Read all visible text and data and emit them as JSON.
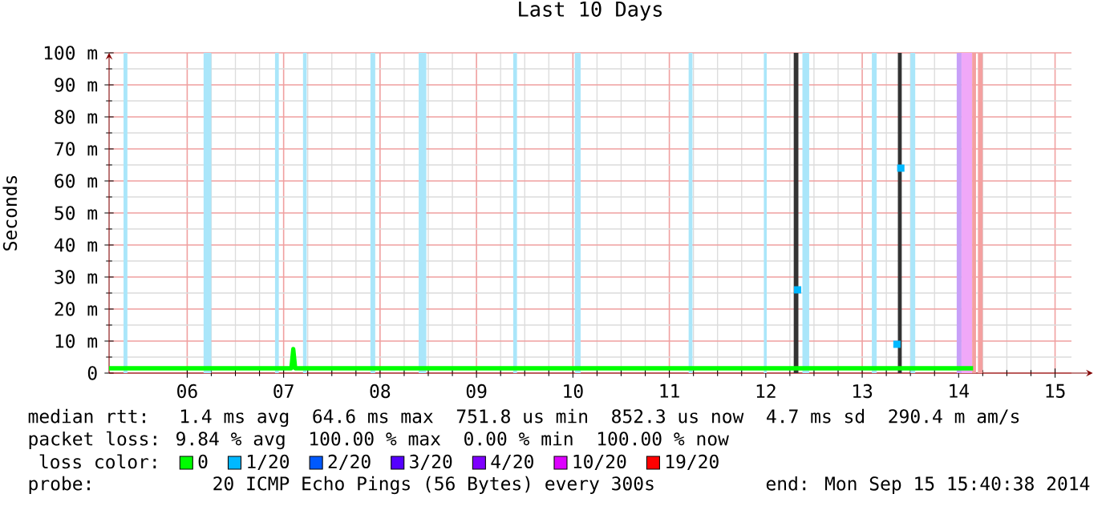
{
  "chart_data": {
    "type": "line",
    "title": "Last 10 Days",
    "ylabel": "Seconds",
    "xlim": [
      5.19,
      15.17
    ],
    "ylim": [
      0,
      100
    ],
    "xticks": [
      {
        "value": 6,
        "label": "06"
      },
      {
        "value": 7,
        "label": "07"
      },
      {
        "value": 8,
        "label": "08"
      },
      {
        "value": 9,
        "label": "09"
      },
      {
        "value": 10,
        "label": "10"
      },
      {
        "value": 11,
        "label": "11"
      },
      {
        "value": 12,
        "label": "12"
      },
      {
        "value": 13,
        "label": "13"
      },
      {
        "value": 14,
        "label": "14"
      },
      {
        "value": 15,
        "label": "15"
      }
    ],
    "yticks": [
      0,
      {
        "value": 10,
        "label": "10 m"
      },
      {
        "value": 20,
        "label": "20 m"
      },
      {
        "value": 30,
        "label": "30 m"
      },
      {
        "value": 40,
        "label": "40 m"
      },
      {
        "value": 50,
        "label": "50 m"
      },
      {
        "value": 60,
        "label": "60 m"
      },
      {
        "value": 70,
        "label": "70 m"
      },
      {
        "value": 80,
        "label": "80 m"
      },
      {
        "value": 90,
        "label": "90 m"
      },
      {
        "value": 100,
        "label": "100 m"
      }
    ],
    "grid": true,
    "legend": "bottom left",
    "legend_title": "loss color:",
    "series": [
      {
        "name": "0",
        "color": "#00ff00",
        "x": [
          5.19,
          6.0,
          7.0,
          7.08,
          7.1,
          7.12,
          8.0,
          9.0,
          10.0,
          11.0,
          12.0,
          12.3,
          13.3,
          14.0,
          14.15
        ],
        "values": [
          1.5,
          1.5,
          1.5,
          1.5,
          7.5,
          1.5,
          1.5,
          1.5,
          1.5,
          1.5,
          1.5,
          1.5,
          1.5,
          1.5,
          1.5
        ]
      },
      {
        "name": "1/20",
        "color": "#00b8ff",
        "type": "scatter",
        "marker": "square",
        "x": [
          12.33,
          13.36,
          13.4
        ],
        "values": [
          26,
          9,
          64
        ]
      },
      {
        "name": "2/20",
        "color": "#0059ff"
      },
      {
        "name": "3/20",
        "color": "#5500ff"
      },
      {
        "name": "4/20",
        "color": "#7e00ff"
      },
      {
        "name": "10/20",
        "color": "#dd00ff"
      },
      {
        "name": "19/20",
        "color": "#ff0000"
      }
    ],
    "bands": [
      {
        "axis": "x",
        "from": 5.34,
        "to": 5.38,
        "color": "#aae6fa"
      },
      {
        "axis": "x",
        "from": 6.17,
        "to": 6.25,
        "color": "#aae6fa"
      },
      {
        "axis": "x",
        "from": 6.91,
        "to": 6.95,
        "color": "#aae6fa"
      },
      {
        "axis": "x",
        "from": 7.2,
        "to": 7.24,
        "color": "#aae6fa"
      },
      {
        "axis": "x",
        "from": 7.9,
        "to": 7.95,
        "color": "#aae6fa"
      },
      {
        "axis": "x",
        "from": 8.4,
        "to": 8.48,
        "color": "#aae6fa"
      },
      {
        "axis": "x",
        "from": 9.38,
        "to": 9.42,
        "color": "#aae6fa"
      },
      {
        "axis": "x",
        "from": 10.02,
        "to": 10.08,
        "color": "#aae6fa"
      },
      {
        "axis": "x",
        "from": 11.2,
        "to": 11.24,
        "color": "#aae6fa"
      },
      {
        "axis": "x",
        "from": 11.98,
        "to": 12.01,
        "color": "#aae6fa"
      },
      {
        "axis": "x",
        "from": 12.29,
        "to": 12.34,
        "color": "#333333"
      },
      {
        "axis": "x",
        "from": 12.38,
        "to": 12.45,
        "color": "#aae6fa"
      },
      {
        "axis": "x",
        "from": 13.1,
        "to": 13.15,
        "color": "#aae6fa"
      },
      {
        "axis": "x",
        "from": 13.37,
        "to": 13.41,
        "color": "#333333"
      },
      {
        "axis": "x",
        "from": 13.5,
        "to": 13.55,
        "color": "#aae6fa"
      },
      {
        "axis": "x",
        "from": 13.98,
        "to": 14.03,
        "color": "#c8a0f8"
      },
      {
        "axis": "x",
        "from": 14.03,
        "to": 14.14,
        "color": "#f0a8f8"
      },
      {
        "axis": "x",
        "from": 14.14,
        "to": 14.18,
        "color": "#f4a0a0"
      },
      {
        "axis": "x",
        "from": 14.2,
        "to": 14.25,
        "color": "#f4a0a0"
      }
    ],
    "annotations": [
      "median rtt:  1.4 ms avg  64.6 ms max  751.8 us min  852.3 us now  4.7 ms sd  290.4 m am/s",
      "packet loss: 9.84 % avg  100.00 % max  0.00 % min  100.00 % now",
      "probe:        20 ICMP Echo Pings (56 Bytes) every 300s",
      "end: Mon Sep 15 15:40:38 2014"
    ]
  }
}
